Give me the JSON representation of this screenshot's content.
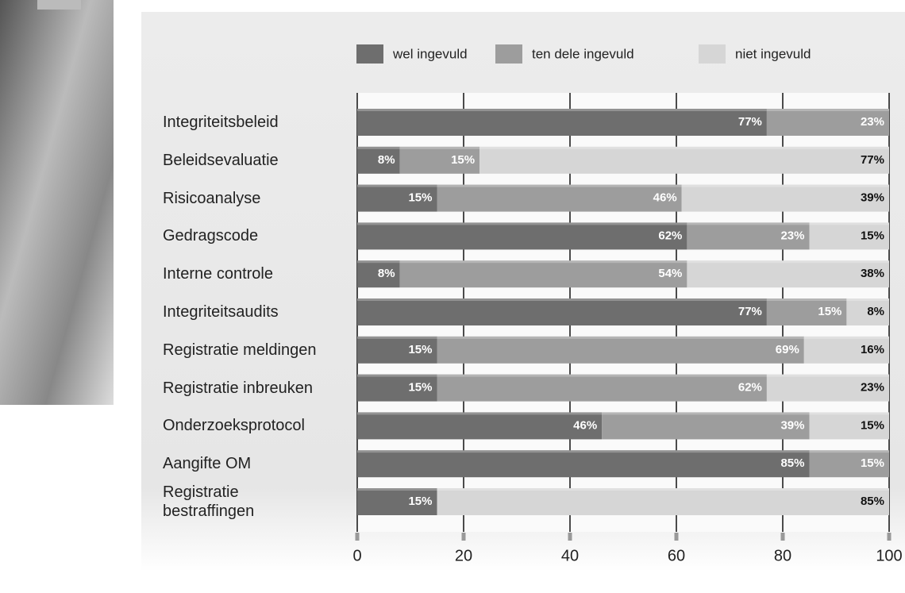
{
  "chart_data": {
    "type": "stacked-bar-horizontal",
    "categories": [
      "Integriteitsbeleid",
      "Beleidsevaluatie",
      "Risicoanalyse",
      "Gedragscode",
      "Interne controle",
      "Integriteitsaudits",
      "Registratie meldingen",
      "Registratie inbreuken",
      "Onderzoeksprotocol",
      "Aangifte OM",
      "Registratie\nbestraffingen"
    ],
    "series": [
      {
        "name": "wel ingevuld",
        "color": "#6e6e6e",
        "label_color": "#ffffff",
        "values": [
          77,
          8,
          15,
          62,
          8,
          77,
          15,
          15,
          46,
          85,
          15
        ],
        "value_labels": [
          "77%",
          "8%",
          "15%",
          "62%",
          "8%",
          "77%",
          "15%",
          "15%",
          "46%",
          "85%",
          "15%"
        ]
      },
      {
        "name": "ten dele ingevuld",
        "color": "#9d9d9d",
        "label_color": "#ffffff",
        "values": [
          23,
          15,
          46,
          23,
          54,
          15,
          69,
          62,
          39,
          15,
          null
        ],
        "value_labels": [
          "23%",
          "15%",
          "46%",
          "23%",
          "54%",
          "15%",
          "69%",
          "62%",
          "39%",
          "15%",
          null
        ]
      },
      {
        "name": "niet ingevuld",
        "color": "#d6d6d6",
        "label_color": "#111111",
        "values": [
          null,
          77,
          39,
          15,
          38,
          8,
          16,
          23,
          15,
          null,
          85
        ],
        "value_labels": [
          null,
          "77%",
          "39%",
          "15%",
          "38%",
          "8%",
          "16%",
          "23%",
          "15%",
          null,
          "85%"
        ]
      }
    ],
    "xlim": [
      0,
      100
    ],
    "xticks": [
      0,
      20,
      40,
      60,
      80,
      100
    ],
    "grid": true
  }
}
